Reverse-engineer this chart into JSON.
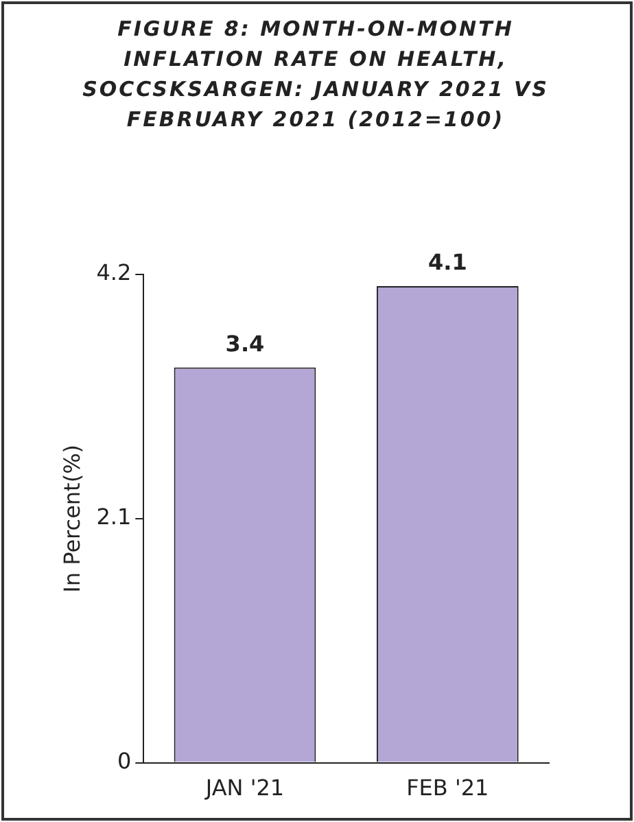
{
  "chart_data": {
    "type": "bar",
    "title": "FIGURE 8: MONTH-ON-MONTH INFLATION RATE ON HEALTH, SOCCSKSARGEN: JANUARY 2021 VS FEBRUARY 2021 (2012=100)",
    "ylabel": "In Percent(%)",
    "categories": [
      "JAN '21",
      "FEB '21"
    ],
    "values": [
      3.4,
      4.1
    ],
    "color": "#b4a7d6",
    "ylim": [
      0,
      4.2
    ],
    "yticks": [
      0,
      2.1,
      4.2
    ],
    "grid": false,
    "legend": false,
    "data_labels": true
  }
}
